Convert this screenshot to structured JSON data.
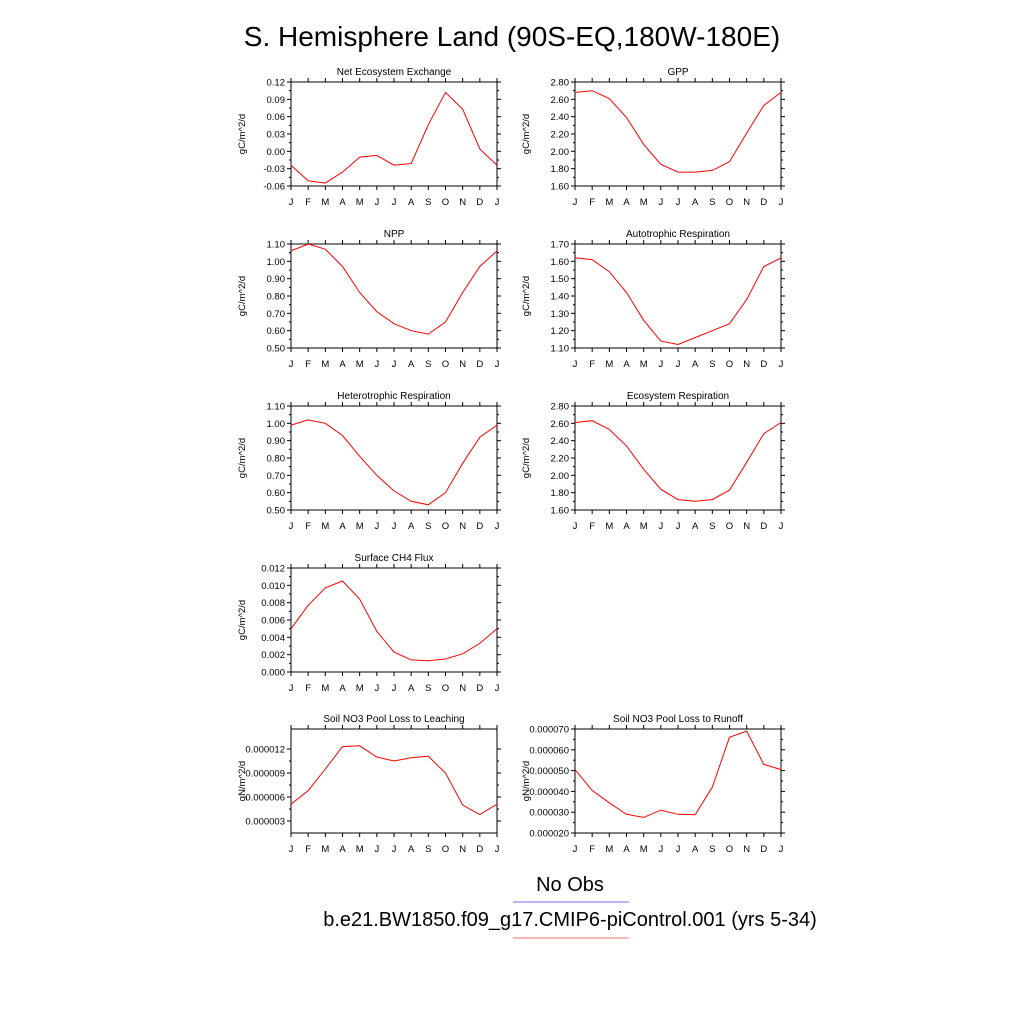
{
  "title": "S. Hemisphere Land (90S-EQ,180W-180E)",
  "legend": {
    "entries": [
      {
        "label": "No Obs",
        "color": "#8c8cff"
      },
      {
        "label": "b.e21.BW1850.f09_g17.CMIP6-piControl.001 (yrs 5-34)",
        "color": "#ff8c8c"
      }
    ]
  },
  "series_color": "#ff0000",
  "months": [
    "J",
    "F",
    "M",
    "A",
    "M",
    "J",
    "J",
    "A",
    "S",
    "O",
    "N",
    "D",
    "J"
  ],
  "chart_data": [
    {
      "type": "line",
      "title": "Net Ecosystem Exchange",
      "ylabel": "gC/m^2/d",
      "ylim": [
        -0.06,
        0.12
      ],
      "yticks": [
        "-0.06",
        "-0.03",
        "0.00",
        "0.03",
        "0.06",
        "0.09",
        "0.12"
      ],
      "categories": [
        "J",
        "F",
        "M",
        "A",
        "M",
        "J",
        "J",
        "A",
        "S",
        "O",
        "N",
        "D",
        "J"
      ],
      "values": [
        -0.024,
        -0.051,
        -0.055,
        -0.036,
        -0.01,
        -0.007,
        -0.024,
        -0.021,
        0.046,
        0.102,
        0.073,
        0.004,
        -0.024
      ]
    },
    {
      "type": "line",
      "title": "GPP",
      "ylabel": "gC/m^2/d",
      "ylim": [
        1.6,
        2.8
      ],
      "yticks": [
        "1.60",
        "1.80",
        "2.00",
        "2.20",
        "2.40",
        "2.60",
        "2.80"
      ],
      "categories": [
        "J",
        "F",
        "M",
        "A",
        "M",
        "J",
        "J",
        "A",
        "S",
        "O",
        "N",
        "D",
        "J"
      ],
      "values": [
        2.68,
        2.7,
        2.61,
        2.39,
        2.08,
        1.85,
        1.76,
        1.76,
        1.78,
        1.88,
        2.21,
        2.53,
        2.68
      ]
    },
    {
      "type": "line",
      "title": "NPP",
      "ylabel": "gC/m^2/d",
      "ylim": [
        0.5,
        1.1
      ],
      "yticks": [
        "0.50",
        "0.60",
        "0.70",
        "0.80",
        "0.90",
        "1.00",
        "1.10"
      ],
      "categories": [
        "J",
        "F",
        "M",
        "A",
        "M",
        "J",
        "J",
        "A",
        "S",
        "O",
        "N",
        "D",
        "J"
      ],
      "values": [
        1.06,
        1.1,
        1.07,
        0.97,
        0.82,
        0.71,
        0.64,
        0.6,
        0.58,
        0.65,
        0.82,
        0.97,
        1.06
      ]
    },
    {
      "type": "line",
      "title": "Autotrophic Respiration",
      "ylabel": "gC/m^2/d",
      "ylim": [
        1.1,
        1.7
      ],
      "yticks": [
        "1.10",
        "1.20",
        "1.30",
        "1.40",
        "1.50",
        "1.60",
        "1.70"
      ],
      "categories": [
        "J",
        "F",
        "M",
        "A",
        "M",
        "J",
        "J",
        "A",
        "S",
        "O",
        "N",
        "D",
        "J"
      ],
      "values": [
        1.62,
        1.61,
        1.54,
        1.42,
        1.26,
        1.14,
        1.12,
        1.16,
        1.2,
        1.24,
        1.38,
        1.57,
        1.62
      ]
    },
    {
      "type": "line",
      "title": "Heterotrophic Respiration",
      "ylabel": "gC/m^2/d",
      "ylim": [
        0.5,
        1.1
      ],
      "yticks": [
        "0.50",
        "0.60",
        "0.70",
        "0.80",
        "0.90",
        "1.00",
        "1.10"
      ],
      "categories": [
        "J",
        "F",
        "M",
        "A",
        "M",
        "J",
        "J",
        "A",
        "S",
        "O",
        "N",
        "D",
        "J"
      ],
      "values": [
        0.99,
        1.02,
        1.0,
        0.93,
        0.81,
        0.7,
        0.61,
        0.55,
        0.53,
        0.6,
        0.77,
        0.92,
        0.99
      ]
    },
    {
      "type": "line",
      "title": "Ecosystem Respiration",
      "ylabel": "gC/m^2/d",
      "ylim": [
        1.6,
        2.8
      ],
      "yticks": [
        "1.60",
        "1.80",
        "2.00",
        "2.20",
        "2.40",
        "2.60",
        "2.80"
      ],
      "categories": [
        "J",
        "F",
        "M",
        "A",
        "M",
        "J",
        "J",
        "A",
        "S",
        "O",
        "N",
        "D",
        "J"
      ],
      "values": [
        2.61,
        2.63,
        2.53,
        2.34,
        2.07,
        1.84,
        1.72,
        1.7,
        1.72,
        1.83,
        2.15,
        2.48,
        2.61
      ]
    },
    {
      "type": "line",
      "title": "Surface CH4 Flux",
      "ylabel": "gC/m^2/d",
      "ylim": [
        0.0,
        0.012
      ],
      "yticks": [
        "0.000",
        "0.002",
        "0.004",
        "0.006",
        "0.008",
        "0.010",
        "0.012"
      ],
      "categories": [
        "J",
        "F",
        "M",
        "A",
        "M",
        "J",
        "J",
        "A",
        "S",
        "O",
        "N",
        "D",
        "J"
      ],
      "values": [
        0.005,
        0.0077,
        0.0097,
        0.0105,
        0.0084,
        0.0047,
        0.0023,
        0.0014,
        0.0013,
        0.0015,
        0.0021,
        0.0033,
        0.005
      ]
    },
    {
      "type": "line",
      "title": "Soil NO3 Pool Loss to Leaching",
      "ylabel": "gN/m^2/d",
      "ylim": [
        1.5e-06,
        1.45e-05
      ],
      "yticks": [
        "0.000003",
        "0.000006",
        "0.000009",
        "0.000012"
      ],
      "ytick_values": [
        3e-06,
        6e-06,
        9e-06,
        1.2e-05
      ],
      "categories": [
        "J",
        "F",
        "M",
        "A",
        "M",
        "J",
        "J",
        "A",
        "S",
        "O",
        "N",
        "D",
        "J"
      ],
      "values": [
        5.1e-06,
        6.8e-06,
        9.5e-06,
        1.23e-05,
        1.24e-05,
        1.1e-05,
        1.05e-05,
        1.09e-05,
        1.11e-05,
        9e-06,
        5e-06,
        3.8e-06,
        5.1e-06
      ]
    },
    {
      "type": "line",
      "title": "Soil NO3 Pool Loss to Runoff",
      "ylabel": "gN/m^2/d",
      "ylim": [
        2e-05,
        7e-05
      ],
      "yticks": [
        "0.000020",
        "0.000030",
        "0.000040",
        "0.000050",
        "0.000060",
        "0.000070"
      ],
      "categories": [
        "J",
        "F",
        "M",
        "A",
        "M",
        "J",
        "J",
        "A",
        "S",
        "O",
        "N",
        "D",
        "J"
      ],
      "values": [
        5.05e-05,
        4.05e-05,
        3.45e-05,
        2.9e-05,
        2.75e-05,
        3.1e-05,
        2.9e-05,
        2.88e-05,
        4.2e-05,
        6.6e-05,
        6.9e-05,
        5.3e-05,
        5.05e-05
      ]
    }
  ]
}
